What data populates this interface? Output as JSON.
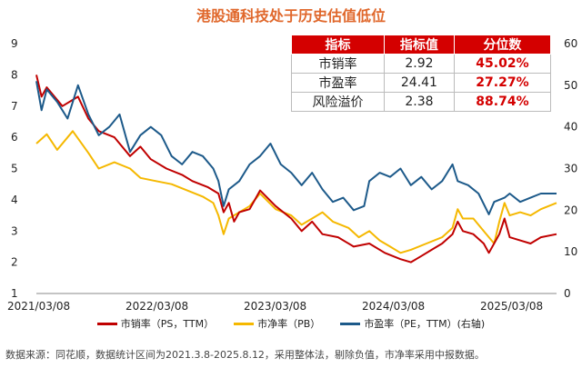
{
  "chart_data": {
    "type": "line",
    "title": "港股通科技处于历史估值低位",
    "x_ticks": [
      "2021/03/08",
      "2022/03/08",
      "2023/03/08",
      "2024/03/08",
      "2025/03/08"
    ],
    "left_axis": {
      "min": 1,
      "max": 9,
      "ticks": [
        1,
        2,
        3,
        4,
        5,
        6,
        7,
        8,
        9
      ]
    },
    "right_axis": {
      "min": 0,
      "max": 60,
      "ticks": [
        0,
        10,
        20,
        30,
        40,
        50,
        60
      ]
    },
    "series": [
      {
        "name": "市销率（PS，TTM）",
        "axis": "left",
        "color": "#c00000",
        "points": [
          [
            0.0,
            8.0
          ],
          [
            0.01,
            7.3
          ],
          [
            0.02,
            7.6
          ],
          [
            0.05,
            7.0
          ],
          [
            0.08,
            7.3
          ],
          [
            0.1,
            6.6
          ],
          [
            0.12,
            6.2
          ],
          [
            0.15,
            6.0
          ],
          [
            0.18,
            5.4
          ],
          [
            0.2,
            5.7
          ],
          [
            0.22,
            5.3
          ],
          [
            0.25,
            5.0
          ],
          [
            0.28,
            4.8
          ],
          [
            0.3,
            4.6
          ],
          [
            0.33,
            4.4
          ],
          [
            0.35,
            4.2
          ],
          [
            0.36,
            3.6
          ],
          [
            0.37,
            3.9
          ],
          [
            0.38,
            3.3
          ],
          [
            0.39,
            3.6
          ],
          [
            0.41,
            3.7
          ],
          [
            0.43,
            4.3
          ],
          [
            0.46,
            3.8
          ],
          [
            0.49,
            3.4
          ],
          [
            0.51,
            3.0
          ],
          [
            0.53,
            3.3
          ],
          [
            0.55,
            2.9
          ],
          [
            0.58,
            2.8
          ],
          [
            0.61,
            2.5
          ],
          [
            0.64,
            2.6
          ],
          [
            0.67,
            2.3
          ],
          [
            0.7,
            2.1
          ],
          [
            0.72,
            2.0
          ],
          [
            0.74,
            2.2
          ],
          [
            0.76,
            2.4
          ],
          [
            0.78,
            2.6
          ],
          [
            0.8,
            2.9
          ],
          [
            0.81,
            3.3
          ],
          [
            0.82,
            3.0
          ],
          [
            0.84,
            2.9
          ],
          [
            0.86,
            2.6
          ],
          [
            0.87,
            2.3
          ],
          [
            0.89,
            2.9
          ],
          [
            0.9,
            3.4
          ],
          [
            0.91,
            2.8
          ],
          [
            0.93,
            2.7
          ],
          [
            0.95,
            2.6
          ],
          [
            0.97,
            2.8
          ],
          [
            1.0,
            2.9
          ]
        ]
      },
      {
        "name": "市净率（PB）",
        "axis": "left",
        "color": "#f5b800",
        "points": [
          [
            0.0,
            5.8
          ],
          [
            0.02,
            6.1
          ],
          [
            0.04,
            5.6
          ],
          [
            0.07,
            6.2
          ],
          [
            0.1,
            5.5
          ],
          [
            0.12,
            5.0
          ],
          [
            0.15,
            5.2
          ],
          [
            0.18,
            5.0
          ],
          [
            0.2,
            4.7
          ],
          [
            0.23,
            4.6
          ],
          [
            0.26,
            4.5
          ],
          [
            0.29,
            4.3
          ],
          [
            0.32,
            4.1
          ],
          [
            0.34,
            3.9
          ],
          [
            0.35,
            3.5
          ],
          [
            0.36,
            2.9
          ],
          [
            0.37,
            3.4
          ],
          [
            0.39,
            3.6
          ],
          [
            0.41,
            3.8
          ],
          [
            0.43,
            4.2
          ],
          [
            0.46,
            3.7
          ],
          [
            0.49,
            3.5
          ],
          [
            0.51,
            3.2
          ],
          [
            0.53,
            3.4
          ],
          [
            0.55,
            3.6
          ],
          [
            0.57,
            3.3
          ],
          [
            0.6,
            3.1
          ],
          [
            0.62,
            2.8
          ],
          [
            0.64,
            3.0
          ],
          [
            0.66,
            2.7
          ],
          [
            0.68,
            2.5
          ],
          [
            0.7,
            2.3
          ],
          [
            0.72,
            2.4
          ],
          [
            0.75,
            2.6
          ],
          [
            0.78,
            2.8
          ],
          [
            0.8,
            3.1
          ],
          [
            0.81,
            3.7
          ],
          [
            0.82,
            3.4
          ],
          [
            0.84,
            3.4
          ],
          [
            0.86,
            3.0
          ],
          [
            0.88,
            2.6
          ],
          [
            0.89,
            3.3
          ],
          [
            0.9,
            3.9
          ],
          [
            0.91,
            3.5
          ],
          [
            0.93,
            3.6
          ],
          [
            0.95,
            3.5
          ],
          [
            0.97,
            3.7
          ],
          [
            1.0,
            3.9
          ]
        ]
      },
      {
        "name": "市盈率（PE，TTM）(右轴)",
        "axis": "right",
        "color": "#1d5a8a",
        "points": [
          [
            0.0,
            51
          ],
          [
            0.01,
            44
          ],
          [
            0.02,
            49
          ],
          [
            0.04,
            46
          ],
          [
            0.06,
            42
          ],
          [
            0.08,
            50
          ],
          [
            0.1,
            43
          ],
          [
            0.12,
            38
          ],
          [
            0.14,
            40
          ],
          [
            0.16,
            43
          ],
          [
            0.18,
            34
          ],
          [
            0.2,
            38
          ],
          [
            0.22,
            40
          ],
          [
            0.24,
            38
          ],
          [
            0.26,
            33
          ],
          [
            0.28,
            31
          ],
          [
            0.3,
            34
          ],
          [
            0.32,
            33
          ],
          [
            0.34,
            30
          ],
          [
            0.35,
            27
          ],
          [
            0.36,
            21
          ],
          [
            0.37,
            25
          ],
          [
            0.39,
            27
          ],
          [
            0.41,
            31
          ],
          [
            0.43,
            33
          ],
          [
            0.45,
            36
          ],
          [
            0.47,
            31
          ],
          [
            0.49,
            29
          ],
          [
            0.51,
            26
          ],
          [
            0.53,
            29
          ],
          [
            0.55,
            25
          ],
          [
            0.57,
            22
          ],
          [
            0.59,
            23
          ],
          [
            0.61,
            20
          ],
          [
            0.63,
            21
          ],
          [
            0.64,
            27
          ],
          [
            0.66,
            29
          ],
          [
            0.68,
            28
          ],
          [
            0.7,
            30
          ],
          [
            0.72,
            26
          ],
          [
            0.74,
            28
          ],
          [
            0.76,
            25
          ],
          [
            0.78,
            27
          ],
          [
            0.8,
            31
          ],
          [
            0.81,
            27
          ],
          [
            0.83,
            26
          ],
          [
            0.85,
            24
          ],
          [
            0.87,
            19
          ],
          [
            0.88,
            22
          ],
          [
            0.9,
            23
          ],
          [
            0.91,
            24
          ],
          [
            0.93,
            22
          ],
          [
            0.95,
            23
          ],
          [
            0.97,
            24
          ],
          [
            1.0,
            24
          ]
        ]
      }
    ]
  },
  "table": {
    "headers": [
      "指标",
      "指标值",
      "分位数"
    ],
    "rows": [
      [
        "市销率",
        "2.92",
        "45.02%"
      ],
      [
        "市盈率",
        "24.41",
        "27.27%"
      ],
      [
        "风险溢价",
        "2.38",
        "88.74%"
      ]
    ]
  },
  "legend_labels": [
    "市销率（PS，TTM）",
    "市净率（PB）",
    "市盈率（PE，TTM）(右轴)"
  ],
  "legend_colors": [
    "#c00000",
    "#f5b800",
    "#1d5a8a"
  ],
  "source_note": "数据来源：同花顺，数据统计区间为2021.3.8-2025.8.12，采用整体法，剔除负值，市净率采用中报数据。"
}
